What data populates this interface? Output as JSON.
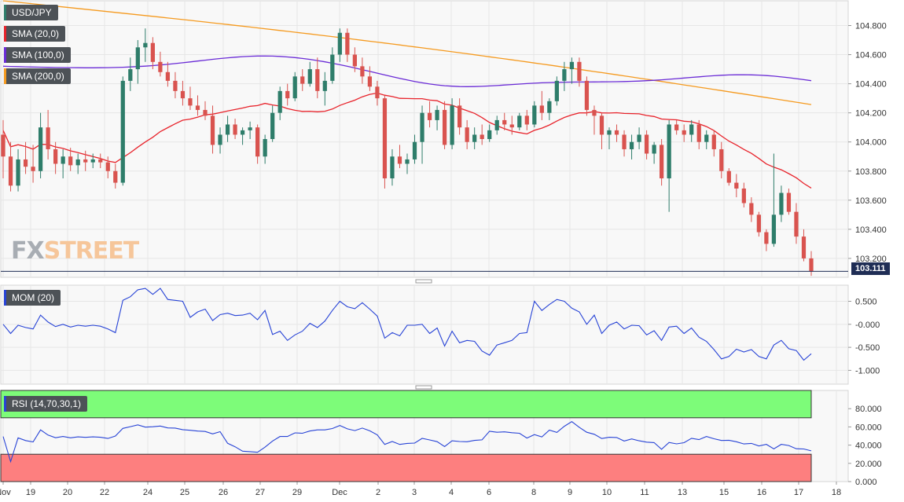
{
  "chart_data": [
    {
      "type": "candlestick",
      "symbol_label": "USD/JPY",
      "indicator_labels": [
        "SMA (20,0)",
        "SMA (100,0)",
        "SMA (200,0)"
      ],
      "indicator_colors": [
        "#e8232b",
        "#6a2bd6",
        "#f59a1f"
      ],
      "current_price": "103.111",
      "ylim": [
        103.07,
        104.97
      ],
      "y_ticks": [
        "104.800",
        "104.600",
        "104.400",
        "104.200",
        "104.000",
        "103.800",
        "103.600",
        "103.400",
        "103.200"
      ],
      "candles": [
        [
          104.05,
          104.15,
          103.75,
          103.9
        ],
        [
          103.9,
          104.0,
          103.66,
          103.7
        ],
        [
          103.7,
          103.95,
          103.66,
          103.88
        ],
        [
          103.88,
          104.0,
          103.78,
          103.83
        ],
        [
          103.83,
          103.98,
          103.72,
          103.8
        ],
        [
          103.8,
          104.2,
          103.75,
          104.1
        ],
        [
          104.1,
          104.22,
          103.88,
          103.95
        ],
        [
          103.95,
          104.0,
          103.78,
          103.85
        ],
        [
          103.85,
          103.95,
          103.75,
          103.9
        ],
        [
          103.9,
          103.96,
          103.8,
          103.84
        ],
        [
          103.84,
          103.92,
          103.78,
          103.88
        ],
        [
          103.88,
          103.94,
          103.8,
          103.86
        ],
        [
          103.86,
          103.92,
          103.82,
          103.88
        ],
        [
          103.88,
          103.92,
          103.82,
          103.86
        ],
        [
          103.86,
          103.9,
          103.75,
          103.8
        ],
        [
          103.8,
          103.85,
          103.68,
          103.72
        ],
        [
          103.72,
          104.45,
          103.7,
          104.42
        ],
        [
          104.42,
          104.58,
          104.35,
          104.5
        ],
        [
          104.5,
          104.7,
          104.4,
          104.65
        ],
        [
          104.65,
          104.78,
          104.55,
          104.68
        ],
        [
          104.68,
          104.72,
          104.5,
          104.55
        ],
        [
          104.55,
          104.62,
          104.45,
          104.48
        ],
        [
          104.48,
          104.55,
          104.38,
          104.42
        ],
        [
          104.42,
          104.48,
          104.3,
          104.35
        ],
        [
          104.35,
          104.42,
          104.25,
          104.3
        ],
        [
          104.3,
          104.38,
          104.22,
          104.25
        ],
        [
          104.25,
          104.32,
          104.18,
          104.22
        ],
        [
          104.22,
          104.28,
          104.15,
          104.18
        ],
        [
          104.18,
          104.25,
          103.92,
          103.98
        ],
        [
          103.98,
          104.1,
          103.92,
          104.05
        ],
        [
          104.05,
          104.18,
          104.0,
          104.12
        ],
        [
          104.12,
          104.16,
          104.02,
          104.05
        ],
        [
          104.05,
          104.1,
          103.98,
          104.08
        ],
        [
          104.08,
          104.14,
          104.02,
          104.1
        ],
        [
          104.1,
          104.12,
          103.85,
          103.9
        ],
        [
          103.9,
          104.05,
          103.85,
          104.02
        ],
        [
          104.02,
          104.25,
          104.0,
          104.2
        ],
        [
          104.2,
          104.38,
          104.15,
          104.35
        ],
        [
          104.35,
          104.4,
          104.25,
          104.3
        ],
        [
          104.3,
          104.48,
          104.28,
          104.45
        ],
        [
          104.45,
          104.5,
          104.35,
          104.4
        ],
        [
          104.4,
          104.55,
          104.38,
          104.5
        ],
        [
          104.5,
          104.58,
          104.3,
          104.35
        ],
        [
          104.35,
          104.48,
          104.25,
          104.42
        ],
        [
          104.42,
          104.65,
          104.4,
          104.6
        ],
        [
          104.6,
          104.78,
          104.55,
          104.75
        ],
        [
          104.75,
          104.78,
          104.55,
          104.6
        ],
        [
          104.6,
          104.65,
          104.48,
          104.52
        ],
        [
          104.52,
          104.58,
          104.4,
          104.45
        ],
        [
          104.45,
          104.52,
          104.35,
          104.38
        ],
        [
          104.38,
          104.42,
          104.25,
          104.3
        ],
        [
          104.3,
          104.32,
          103.68,
          103.75
        ],
        [
          103.75,
          103.95,
          103.7,
          103.9
        ],
        [
          103.9,
          103.98,
          103.82,
          103.85
        ],
        [
          103.85,
          103.92,
          103.78,
          103.88
        ],
        [
          103.88,
          104.05,
          103.85,
          104.0
        ],
        [
          104.0,
          104.25,
          103.85,
          104.2
        ],
        [
          104.2,
          104.28,
          104.1,
          104.15
        ],
        [
          104.15,
          104.25,
          104.08,
          104.22
        ],
        [
          104.22,
          104.28,
          103.95,
          103.98
        ],
        [
          103.98,
          104.3,
          103.95,
          104.25
        ],
        [
          104.25,
          104.3,
          104.05,
          104.1
        ],
        [
          104.1,
          104.15,
          103.95,
          104.0
        ],
        [
          104.0,
          104.1,
          103.95,
          104.05
        ],
        [
          104.05,
          104.12,
          103.98,
          104.02
        ],
        [
          104.02,
          104.12,
          104.0,
          104.08
        ],
        [
          104.08,
          104.18,
          104.05,
          104.15
        ],
        [
          104.15,
          104.2,
          104.08,
          104.12
        ],
        [
          104.12,
          104.18,
          104.05,
          104.1
        ],
        [
          104.1,
          104.2,
          104.08,
          104.18
        ],
        [
          104.18,
          104.22,
          104.08,
          104.12
        ],
        [
          104.12,
          104.28,
          104.1,
          104.25
        ],
        [
          104.25,
          104.35,
          104.15,
          104.2
        ],
        [
          104.2,
          104.3,
          104.15,
          104.28
        ],
        [
          104.28,
          104.45,
          104.25,
          104.42
        ],
        [
          104.42,
          104.55,
          104.35,
          104.5
        ],
        [
          104.5,
          104.58,
          104.4,
          104.55
        ],
        [
          104.55,
          104.58,
          104.38,
          104.42
        ],
        [
          104.42,
          104.45,
          104.18,
          104.22
        ],
        [
          104.22,
          104.25,
          104.05,
          104.18
        ],
        [
          104.18,
          104.2,
          103.95,
          104.05
        ],
        [
          104.05,
          104.1,
          103.95,
          104.08
        ],
        [
          104.08,
          104.12,
          104.0,
          104.05
        ],
        [
          104.05,
          104.08,
          103.9,
          103.95
        ],
        [
          103.95,
          104.05,
          103.88,
          104.0
        ],
        [
          104.0,
          104.1,
          103.95,
          104.05
        ],
        [
          104.05,
          104.08,
          103.88,
          103.92
        ],
        [
          103.92,
          104.0,
          103.85,
          103.98
        ],
        [
          103.98,
          104.02,
          103.7,
          103.75
        ],
        [
          103.75,
          104.15,
          103.52,
          104.12
        ],
        [
          104.12,
          104.15,
          104.05,
          104.08
        ],
        [
          104.08,
          104.12,
          104.0,
          104.05
        ],
        [
          104.05,
          104.15,
          104.0,
          104.12
        ],
        [
          104.12,
          104.15,
          103.95,
          104.0
        ],
        [
          104.0,
          104.08,
          103.95,
          104.05
        ],
        [
          104.05,
          104.08,
          103.9,
          103.95
        ],
        [
          103.95,
          104.0,
          103.75,
          103.8
        ],
        [
          103.8,
          103.82,
          103.7,
          103.72
        ],
        [
          103.72,
          103.78,
          103.62,
          103.68
        ],
        [
          103.68,
          103.72,
          103.55,
          103.58
        ],
        [
          103.58,
          103.62,
          103.45,
          103.5
        ],
        [
          103.5,
          103.52,
          103.35,
          103.38
        ],
        [
          103.38,
          103.4,
          103.25,
          103.3
        ],
        [
          103.3,
          103.92,
          103.28,
          103.5
        ],
        [
          103.5,
          103.7,
          103.45,
          103.65
        ],
        [
          103.65,
          103.68,
          103.5,
          103.52
        ],
        [
          103.52,
          103.58,
          103.3,
          103.35
        ],
        [
          103.35,
          103.4,
          103.18,
          103.2
        ],
        [
          103.2,
          103.25,
          103.08,
          103.11
        ]
      ]
    },
    {
      "type": "line",
      "indicator_label": "MOM (20)",
      "ylim": [
        -1.3,
        0.85
      ],
      "y_ticks": [
        "0.500",
        "-0.000",
        "-0.500",
        "-1.000"
      ]
    },
    {
      "type": "line",
      "indicator_label": "RSI (14,70,30,1)",
      "ylim": [
        0,
        100
      ],
      "zones": {
        "overbought": 70,
        "oversold": 30
      },
      "y_ticks": [
        "80.000",
        "60.000",
        "40.000",
        "20.000",
        "0.000"
      ]
    }
  ],
  "x_axis_labels": [
    "Nov",
    "19",
    "20",
    "22",
    "24",
    "25",
    "26",
    "27",
    "29",
    "Dec",
    "2",
    "3",
    "4",
    "6",
    "8",
    "9",
    "10",
    "11",
    "13",
    "15",
    "16",
    "17",
    "18"
  ],
  "logo": {
    "part1": "FX",
    "part2": "STREET"
  }
}
